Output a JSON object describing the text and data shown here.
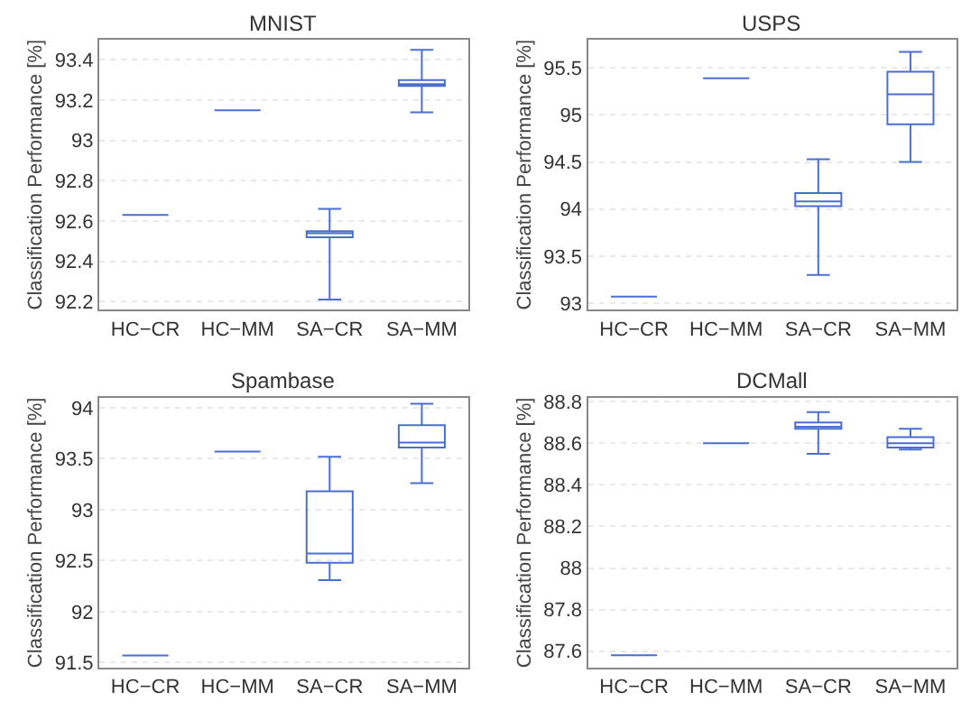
{
  "chart_data": [
    {
      "type": "box",
      "title": "MNIST",
      "ylabel": "Classification Performance [%]",
      "categories": [
        "HC−CR",
        "HC−MM",
        "SA−CR",
        "SA−MM"
      ],
      "ylim": [
        92.16,
        93.5
      ],
      "yticks": [
        92.2,
        92.4,
        92.6,
        92.8,
        93,
        93.2,
        93.4
      ],
      "grid": "y",
      "series": [
        {
          "color": "#4a6fd0",
          "boxes": [
            {
              "low": 92.63,
              "q1": 92.63,
              "median": 92.63,
              "q3": 92.63,
              "high": 92.63
            },
            {
              "low": 93.15,
              "q1": 93.15,
              "median": 93.15,
              "q3": 93.15,
              "high": 93.15
            },
            {
              "low": 92.21,
              "q1": 92.52,
              "median": 92.54,
              "q3": 92.55,
              "high": 92.66
            },
            {
              "low": 93.14,
              "q1": 93.27,
              "median": 93.28,
              "q3": 93.3,
              "high": 93.45
            }
          ]
        }
      ]
    },
    {
      "type": "box",
      "title": "USPS",
      "ylabel": "Classification Performance [%]",
      "categories": [
        "HC−CR",
        "HC−MM",
        "SA−CR",
        "SA−MM"
      ],
      "ylim": [
        92.93,
        95.8
      ],
      "yticks": [
        93,
        93.5,
        94,
        94.5,
        95,
        95.5
      ],
      "grid": "y",
      "series": [
        {
          "color": "#4a6fd0",
          "boxes": [
            {
              "low": 93.07,
              "q1": 93.07,
              "median": 93.07,
              "q3": 93.07,
              "high": 93.07
            },
            {
              "low": 95.39,
              "q1": 95.39,
              "median": 95.39,
              "q3": 95.39,
              "high": 95.39
            },
            {
              "low": 93.3,
              "q1": 94.03,
              "median": 94.08,
              "q3": 94.17,
              "high": 94.53
            },
            {
              "low": 94.5,
              "q1": 94.9,
              "median": 95.22,
              "q3": 95.46,
              "high": 95.67
            }
          ]
        }
      ]
    },
    {
      "type": "box",
      "title": "Spambase",
      "ylabel": "Classification Performance [%]",
      "categories": [
        "HC−CR",
        "HC−MM",
        "SA−CR",
        "SA−MM"
      ],
      "ylim": [
        91.45,
        94.1
      ],
      "yticks": [
        91.5,
        92,
        92.5,
        93,
        93.5,
        94
      ],
      "grid": "y",
      "series": [
        {
          "color": "#4a6fd0",
          "boxes": [
            {
              "low": 91.57,
              "q1": 91.57,
              "median": 91.57,
              "q3": 91.57,
              "high": 91.57
            },
            {
              "low": 93.57,
              "q1": 93.57,
              "median": 93.57,
              "q3": 93.57,
              "high": 93.57
            },
            {
              "low": 92.31,
              "q1": 92.48,
              "median": 92.57,
              "q3": 93.18,
              "high": 93.52
            },
            {
              "low": 93.26,
              "q1": 93.61,
              "median": 93.66,
              "q3": 93.83,
              "high": 94.04
            }
          ]
        }
      ]
    },
    {
      "type": "box",
      "title": "DCMall",
      "ylabel": "Classification Performance [%]",
      "categories": [
        "HC−CR",
        "HC−MM",
        "SA−CR",
        "SA−MM"
      ],
      "ylim": [
        87.52,
        88.82
      ],
      "yticks": [
        87.6,
        87.8,
        88,
        88.2,
        88.4,
        88.6,
        88.8
      ],
      "grid": "y",
      "series": [
        {
          "color": "#4a6fd0",
          "boxes": [
            {
              "low": 87.58,
              "q1": 87.58,
              "median": 87.58,
              "q3": 87.58,
              "high": 87.58
            },
            {
              "low": 88.6,
              "q1": 88.6,
              "median": 88.6,
              "q3": 88.6,
              "high": 88.6
            },
            {
              "low": 88.55,
              "q1": 88.67,
              "median": 88.68,
              "q3": 88.7,
              "high": 88.75
            },
            {
              "low": 88.57,
              "q1": 88.58,
              "median": 88.6,
              "q3": 88.63,
              "high": 88.67
            }
          ]
        }
      ]
    }
  ]
}
